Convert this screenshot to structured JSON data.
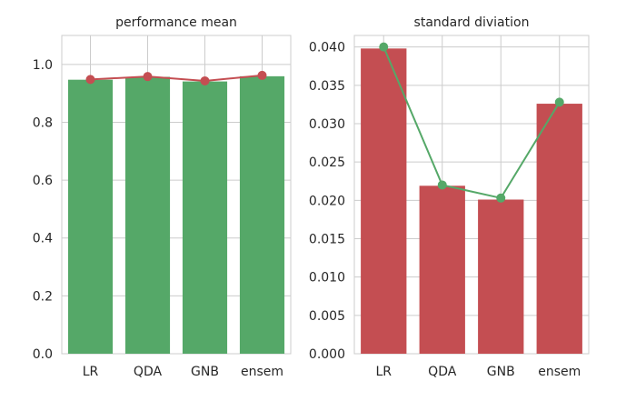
{
  "chart_data": [
    {
      "type": "bar",
      "title": "performance mean",
      "categories": [
        "LR",
        "QDA",
        "GNB",
        "ensem"
      ],
      "values": [
        0.947,
        0.957,
        0.941,
        0.959
      ],
      "line_overlay": [
        0.948,
        0.958,
        0.943,
        0.962
      ],
      "ylim": [
        0,
        1.1
      ],
      "yticks": [
        0.0,
        0.2,
        0.4,
        0.6,
        0.8,
        1.0
      ],
      "ytick_labels": [
        "0.0",
        "0.2",
        "0.4",
        "0.6",
        "0.8",
        "1.0"
      ],
      "bar_color": "#55a868",
      "line_color": "#c44e52",
      "grid": true
    },
    {
      "type": "bar",
      "title": "standard diviation",
      "categories": [
        "LR",
        "QDA",
        "GNB",
        "ensem"
      ],
      "values": [
        0.0398,
        0.0219,
        0.0201,
        0.0326
      ],
      "line_overlay": [
        0.04,
        0.022,
        0.0203,
        0.0328
      ],
      "ylim": [
        0,
        0.0415
      ],
      "yticks": [
        0.0,
        0.005,
        0.01,
        0.015,
        0.02,
        0.025,
        0.03,
        0.035,
        0.04
      ],
      "ytick_labels": [
        "0.000",
        "0.005",
        "0.010",
        "0.015",
        "0.020",
        "0.025",
        "0.030",
        "0.035",
        "0.040"
      ],
      "bar_color": "#c44e52",
      "line_color": "#55a868",
      "grid": true
    }
  ]
}
